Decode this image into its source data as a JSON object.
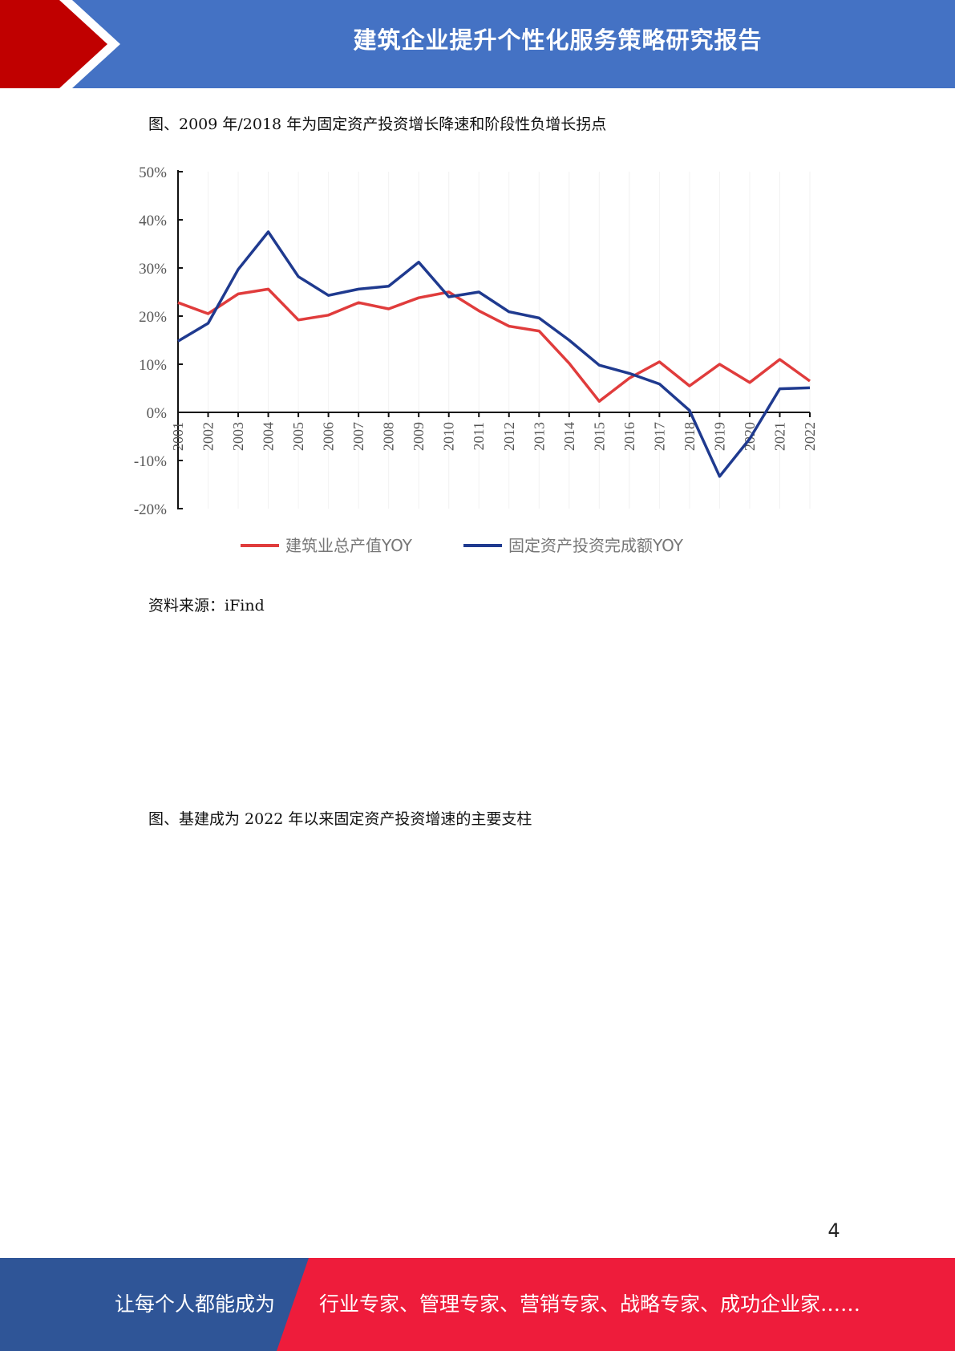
{
  "header": {
    "title": "建筑企业提升个性化服务策略研究报告"
  },
  "figure1": {
    "caption": "图、2009 年/2018 年为固定资产投资增长降速和阶段性负增长拐点",
    "source": "资料来源：iFind"
  },
  "figure2": {
    "caption": "图、基建成为 2022 年以来固定资产投资增速的主要支柱"
  },
  "page_number": "4",
  "footer": {
    "left_text": "让每个人都能成为",
    "right_text": "行业专家、管理专家、营销专家、战略专家、成功企业家……"
  },
  "colors": {
    "header_bg": "#4472c4",
    "chevron_red": "#c00000",
    "footer_blue": "#2f5597",
    "footer_red": "#ee1c3b",
    "series_red": "#e03c3c",
    "series_blue": "#1f3a8f"
  },
  "chart_data": {
    "type": "line",
    "title": "",
    "xlabel": "",
    "ylabel": "",
    "categories": [
      "2001",
      "2002",
      "2003",
      "2004",
      "2005",
      "2006",
      "2007",
      "2008",
      "2009",
      "2010",
      "2011",
      "2012",
      "2013",
      "2014",
      "2015",
      "2016",
      "2017",
      "2018",
      "2019",
      "2020",
      "2021",
      "2022"
    ],
    "ylim": [
      -20,
      50
    ],
    "yticks": [
      "50%",
      "40%",
      "30%",
      "20%",
      "10%",
      "0%",
      "-10%",
      "-20%"
    ],
    "legend_position": "bottom",
    "series": [
      {
        "name": "建筑业总产值YOY",
        "color": "#e03c3c",
        "values": [
          22.8,
          20.5,
          24.6,
          25.6,
          19.2,
          20.2,
          22.8,
          21.5,
          23.8,
          25.0,
          21.1,
          17.9,
          16.9,
          10.2,
          2.3,
          7.1,
          10.5,
          5.5,
          10.0,
          6.2,
          11.0,
          6.5
        ]
      },
      {
        "name": "固定资产投资完成额YOY",
        "color": "#1f3a8f",
        "values": [
          14.8,
          18.5,
          29.7,
          37.5,
          28.2,
          24.3,
          25.6,
          26.2,
          31.2,
          24.0,
          25.0,
          20.9,
          19.6,
          15.0,
          9.8,
          8.1,
          5.9,
          0.4,
          -13.3,
          -5.5,
          4.9,
          5.1
        ]
      }
    ]
  }
}
